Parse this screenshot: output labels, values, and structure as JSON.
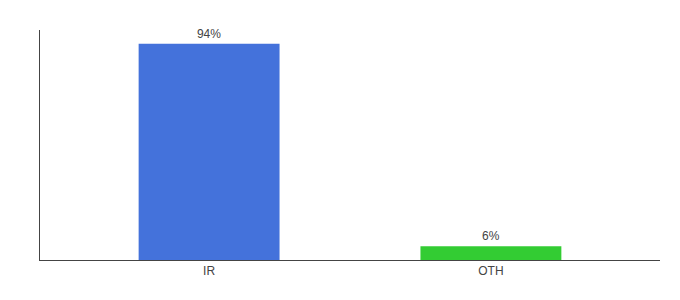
{
  "chart_data": {
    "type": "bar",
    "categories": [
      "IR",
      "OTH"
    ],
    "values": [
      94,
      6
    ],
    "value_labels": [
      "94%",
      "6%"
    ],
    "colors": [
      "#4472db",
      "#33cc33"
    ],
    "ylim": [
      0,
      100
    ],
    "data_labels": true,
    "tick_labels": "x",
    "grid": false
  }
}
